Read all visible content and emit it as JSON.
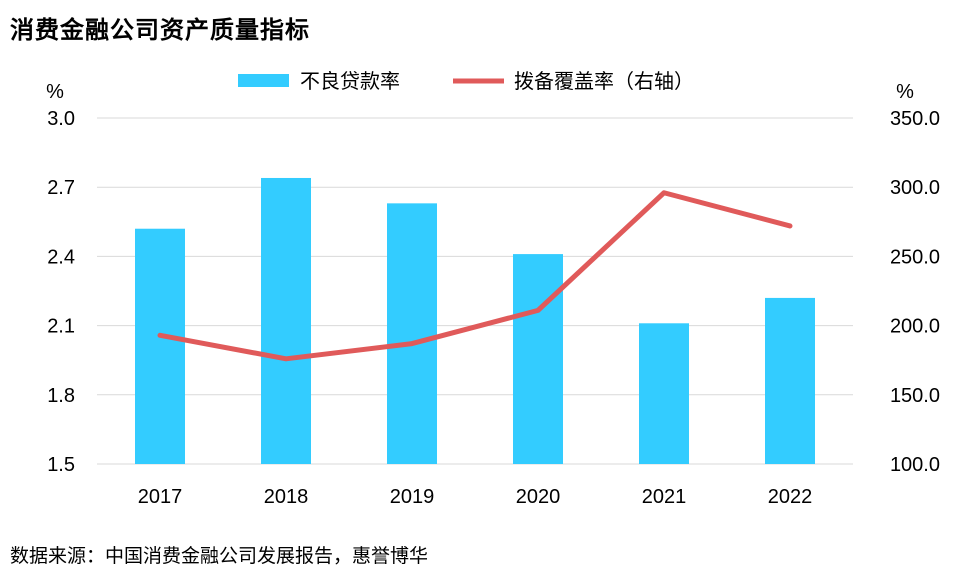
{
  "title": "消费金融公司资产质量指标",
  "source": "数据来源：中国消费金融公司发展报告，惠誉博华",
  "colors": {
    "bar": "#33CCFF",
    "line": "#E05A5A",
    "grid": "#D9D9D9"
  },
  "chart_data": {
    "type": "bar",
    "categories": [
      "2017",
      "2018",
      "2019",
      "2020",
      "2021",
      "2022"
    ],
    "left_unit": "%",
    "right_unit": "%",
    "left_ticks": [
      "3.0",
      "2.7",
      "2.4",
      "2.1",
      "1.8",
      "1.5"
    ],
    "right_ticks": [
      "350.0",
      "300.0",
      "250.0",
      "200.0",
      "150.0",
      "100.0"
    ],
    "ylim_left": [
      1.5,
      3.0
    ],
    "ylim_right": [
      100,
      350
    ],
    "grid": true,
    "legend_position": "top",
    "series": [
      {
        "name": "不良贷款率",
        "type": "bar",
        "axis": "left",
        "values": [
          2.52,
          2.74,
          2.63,
          2.41,
          2.11,
          2.22
        ]
      },
      {
        "name": "拨备覆盖率（右轴）",
        "type": "line",
        "axis": "right",
        "values": [
          193,
          176,
          187,
          211,
          296,
          272
        ]
      }
    ]
  }
}
